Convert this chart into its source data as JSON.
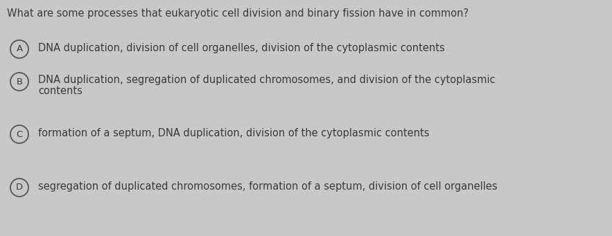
{
  "question": "What are some processes that eukaryotic cell division and binary fission have in common?",
  "options": [
    {
      "label": "A",
      "text": "DNA duplication, division of cell organelles, division of the cytoplasmic contents",
      "line2": null
    },
    {
      "label": "B",
      "text": "DNA duplication, segregation of duplicated chromosomes, and division of the cytoplasmic",
      "line2": "contents"
    },
    {
      "label": "C",
      "text": "formation of a septum, DNA duplication, division of the cytoplasmic contents",
      "line2": null
    },
    {
      "label": "D",
      "text": "segregation of duplicated chromosomes, formation of a septum, division of cell organelles",
      "line2": null
    }
  ],
  "background_color": "#c8c8c8",
  "text_color": "#3a3a3a",
  "circle_edge_color": "#555555",
  "circle_face_color": "#c8c8c8",
  "question_fontsize": 10.5,
  "option_fontsize": 10.5,
  "label_fontsize": 9.5,
  "fig_width": 8.83,
  "fig_height": 3.41,
  "dpi": 100
}
